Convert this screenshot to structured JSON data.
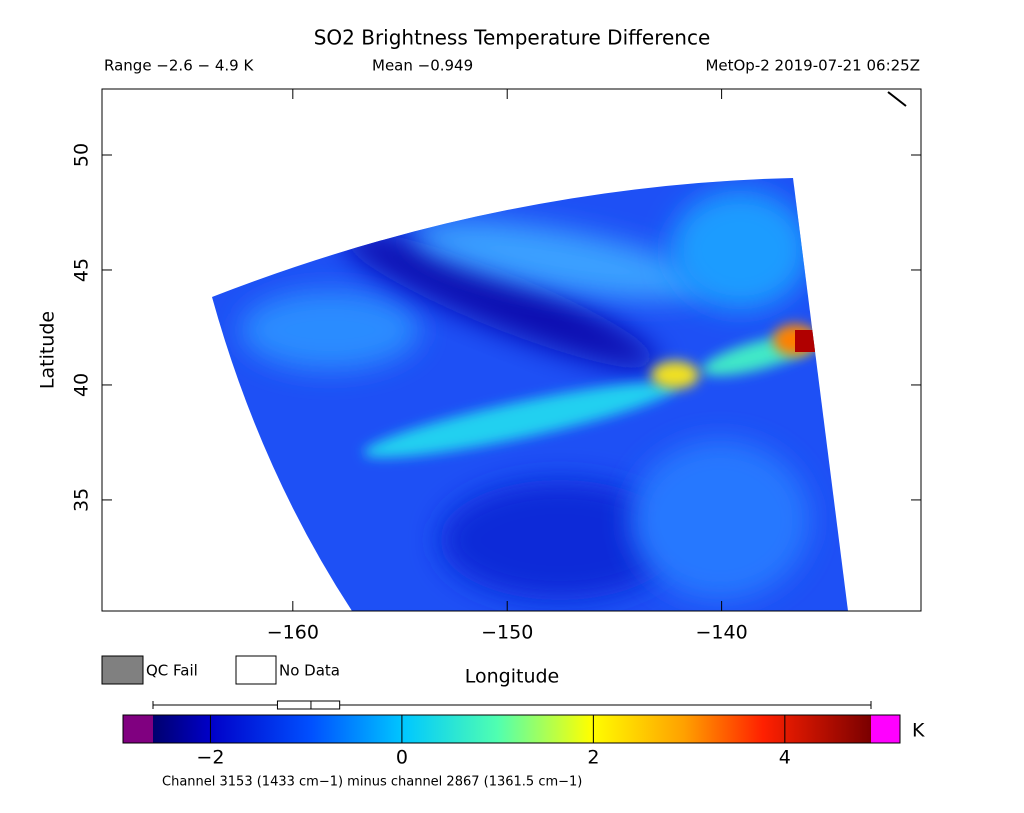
{
  "chart_data": {
    "type": "swath-map",
    "title": "SO2 Brightness Temperature Difference",
    "subtitle_left": "Range −2.6 − 4.9 K",
    "subtitle_center": "Mean −0.949",
    "subtitle_right": "MetOp-2 2019-07-21 06:25Z",
    "xlabel": "Longitude",
    "ylabel": "Latitude",
    "xlim": [
      -168.9,
      -130.7
    ],
    "ylim": [
      30.17,
      52.87
    ],
    "xticks": [
      {
        "value": -160,
        "label": "−160"
      },
      {
        "value": -150,
        "label": "−150"
      },
      {
        "value": -140,
        "label": "−140"
      }
    ],
    "yticks": [
      35,
      40,
      45,
      50
    ],
    "legend": [
      "QC Fail",
      "No Data"
    ],
    "colorbar": {
      "unit": "K",
      "clim": [
        -2.6,
        4.9
      ],
      "ticks": [
        {
          "value": -2,
          "label": "−2"
        },
        0,
        2,
        4
      ],
      "boxplot": {
        "min": -2.6,
        "q1": -1.3,
        "median": -0.95,
        "q3": -0.65,
        "max": 4.9
      }
    },
    "footnote": "Channel 3153 (1433 cm−1) minus channel 2867 (1361.5 cm−1)"
  }
}
